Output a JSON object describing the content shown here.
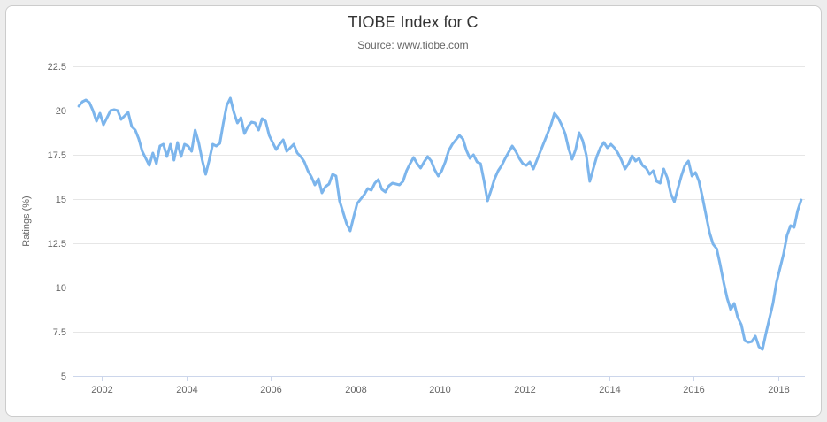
{
  "header": {
    "title": "TIOBE Index for C",
    "subtitle": "Source: www.tiobe.com"
  },
  "colors": {
    "series_line": "#7cb5ec",
    "gridline": "#e6e6e6",
    "axis_line": "#ccd6eb",
    "tick_label": "#666666",
    "title_text": "#333333",
    "subtitle_text": "#666666",
    "card_border": "#cccccc",
    "card_background": "#ffffff",
    "page_background": "#ededed"
  },
  "chart_data": {
    "type": "line",
    "title": "TIOBE Index for C",
    "subtitle": "Source: www.tiobe.com",
    "xlabel": "",
    "ylabel": "Ratings (%)",
    "legend": "none",
    "grid": "horizontal",
    "ylim": [
      5,
      22.5
    ],
    "yticks": [
      5,
      7.5,
      10,
      12.5,
      15,
      17.5,
      20,
      22.5
    ],
    "xticks": [
      2002,
      2004,
      2006,
      2008,
      2010,
      2012,
      2014,
      2016,
      2018
    ],
    "xlim": [
      2001.33,
      2018.63
    ],
    "series": [
      {
        "name": "C",
        "color": "#7cb5ec",
        "frequency": "monthly",
        "start_year": 2001,
        "start_month": 6,
        "end_year": 2018,
        "end_month": 7,
        "values": [
          20.25,
          20.5,
          20.6,
          20.45,
          20.0,
          19.4,
          19.85,
          19.2,
          19.6,
          20.0,
          20.05,
          20.0,
          19.5,
          19.7,
          19.9,
          19.1,
          18.9,
          18.4,
          17.7,
          17.3,
          16.9,
          17.6,
          17.0,
          18.0,
          18.1,
          17.4,
          18.1,
          17.2,
          18.2,
          17.4,
          18.1,
          18.0,
          17.7,
          18.9,
          18.2,
          17.2,
          16.4,
          17.2,
          18.1,
          18.0,
          18.15,
          19.3,
          20.3,
          20.7,
          19.9,
          19.3,
          19.6,
          18.7,
          19.1,
          19.35,
          19.3,
          18.9,
          19.55,
          19.4,
          18.6,
          18.2,
          17.8,
          18.1,
          18.35,
          17.7,
          17.9,
          18.1,
          17.6,
          17.4,
          17.1,
          16.6,
          16.25,
          15.8,
          16.15,
          15.35,
          15.7,
          15.85,
          16.4,
          16.3,
          14.9,
          14.25,
          13.6,
          13.2,
          14.0,
          14.75,
          15.0,
          15.25,
          15.6,
          15.5,
          15.9,
          16.1,
          15.55,
          15.4,
          15.75,
          15.9,
          15.85,
          15.8,
          16.0,
          16.6,
          17.0,
          17.35,
          17.0,
          16.75,
          17.1,
          17.4,
          17.15,
          16.65,
          16.3,
          16.6,
          17.1,
          17.75,
          18.1,
          18.35,
          18.6,
          18.4,
          17.75,
          17.3,
          17.5,
          17.1,
          17.0,
          16.0,
          14.9,
          15.5,
          16.15,
          16.6,
          16.9,
          17.3,
          17.65,
          18.0,
          17.7,
          17.3,
          17.0,
          16.9,
          17.1,
          16.7,
          17.2,
          17.7,
          18.2,
          18.7,
          19.2,
          19.85,
          19.6,
          19.2,
          18.7,
          17.85,
          17.25,
          17.8,
          18.75,
          18.3,
          17.5,
          16.0,
          16.7,
          17.4,
          17.9,
          18.2,
          17.9,
          18.1,
          17.9,
          17.6,
          17.2,
          16.7,
          17.0,
          17.45,
          17.15,
          17.3,
          16.9,
          16.75,
          16.4,
          16.6,
          16.0,
          15.9,
          16.7,
          16.2,
          15.3,
          14.85,
          15.6,
          16.3,
          16.9,
          17.15,
          16.3,
          16.5,
          16.0,
          15.1,
          14.1,
          13.1,
          12.45,
          12.2,
          11.3,
          10.3,
          9.4,
          8.75,
          9.1,
          8.3,
          7.9,
          7.0,
          6.9,
          6.95,
          7.25,
          6.65,
          6.5,
          7.4,
          8.25,
          9.1,
          10.3,
          11.1,
          11.9,
          12.95,
          13.5,
          13.4,
          14.35,
          14.95
        ]
      }
    ]
  }
}
